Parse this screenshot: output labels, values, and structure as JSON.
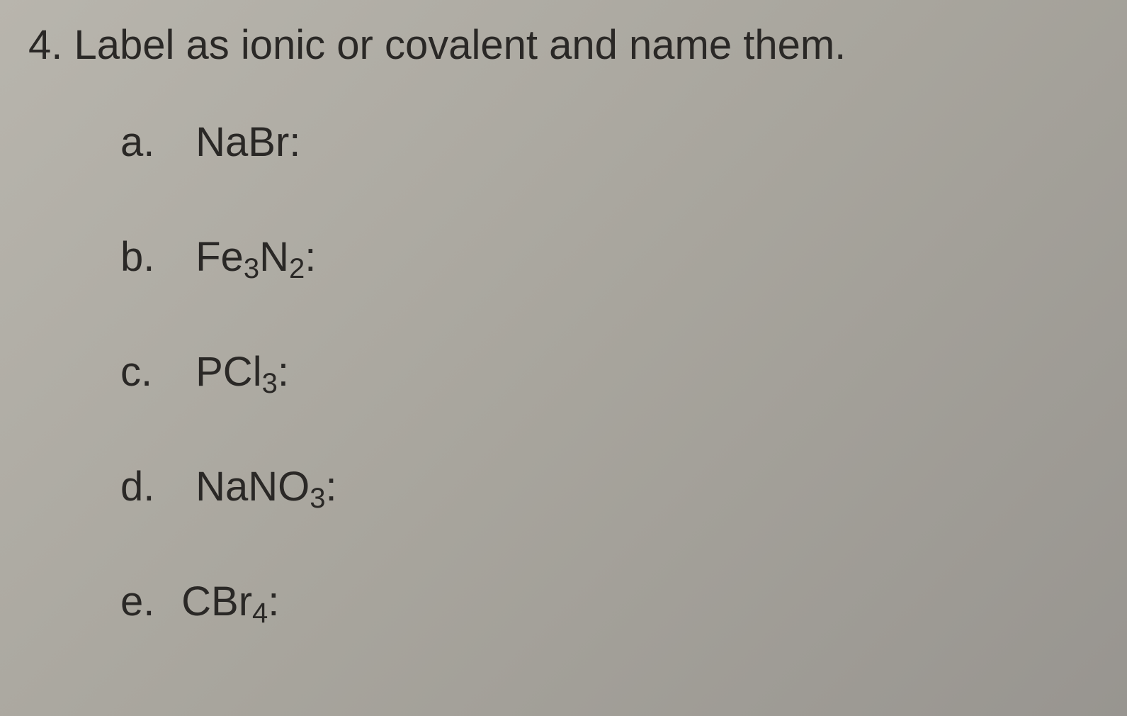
{
  "question": {
    "number": "4.",
    "prompt": "Label as ionic or covalent and name them."
  },
  "items": [
    {
      "letter": "a.",
      "formula_parts": [
        {
          "text": "NaBr:",
          "sub": false
        }
      ]
    },
    {
      "letter": "b.",
      "formula_parts": [
        {
          "text": "Fe",
          "sub": false
        },
        {
          "text": "3",
          "sub": true
        },
        {
          "text": "N",
          "sub": false
        },
        {
          "text": "2",
          "sub": true
        },
        {
          "text": ":",
          "sub": false
        }
      ]
    },
    {
      "letter": "c.",
      "formula_parts": [
        {
          "text": "PCl",
          "sub": false
        },
        {
          "text": "3",
          "sub": true
        },
        {
          "text": ":",
          "sub": false
        }
      ]
    },
    {
      "letter": "d.",
      "formula_parts": [
        {
          "text": "NaNO",
          "sub": false
        },
        {
          "text": "3",
          "sub": true
        },
        {
          "text": ":",
          "sub": false
        }
      ]
    },
    {
      "letter": "e.",
      "formula_parts": [
        {
          "text": "CBr",
          "sub": false
        },
        {
          "text": "4",
          "sub": true
        },
        {
          "text": ":",
          "sub": false
        }
      ]
    }
  ],
  "styling": {
    "background_colors": [
      "#b8b5ad",
      "#a8a59d",
      "#989590"
    ],
    "text_color": "#2a2826",
    "header_fontsize": 58,
    "item_fontsize": 58,
    "subscript_fontsize": 40,
    "font_family": "Arial",
    "item_spacing": 95,
    "items_left_padding": 130
  }
}
